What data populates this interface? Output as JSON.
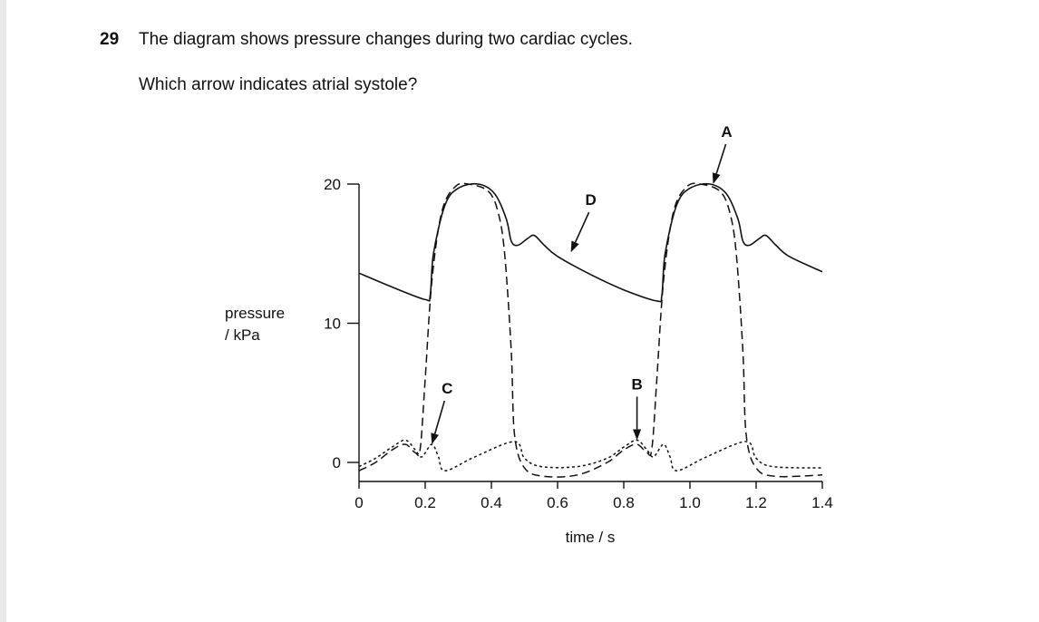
{
  "question": {
    "number": "29",
    "text": "The diagram shows pressure changes during two cardiac cycles.",
    "prompt": "Which arrow indicates atrial systole?"
  },
  "chart_data": {
    "type": "line",
    "xlabel": "time / s",
    "ylabel_line1": "pressure",
    "ylabel_line2": "/ kPa",
    "xlim": [
      0,
      1.4
    ],
    "ylim": [
      0,
      20
    ],
    "x_ticks": [
      "0",
      "0.2",
      "0.4",
      "0.6",
      "0.8",
      "1.0",
      "1.2",
      "1.4"
    ],
    "y_ticks": [
      "0",
      "10",
      "20"
    ],
    "grid": false,
    "series": [
      {
        "style": "solid",
        "points": [
          [
            0,
            13.6
          ],
          [
            0.1,
            12.6
          ],
          [
            0.2,
            11.7
          ],
          [
            0.215,
            12.0
          ],
          [
            0.225,
            15.0
          ],
          [
            0.26,
            18.5
          ],
          [
            0.3,
            19.7
          ],
          [
            0.36,
            20.0
          ],
          [
            0.41,
            19.3
          ],
          [
            0.445,
            17.5
          ],
          [
            0.46,
            15.9
          ],
          [
            0.48,
            15.6
          ],
          [
            0.51,
            16.1
          ],
          [
            0.53,
            16.3
          ],
          [
            0.56,
            15.6
          ],
          [
            0.6,
            14.8
          ],
          [
            0.7,
            13.5
          ],
          [
            0.8,
            12.4
          ],
          [
            0.9,
            11.6
          ],
          [
            0.915,
            12.0
          ],
          [
            0.925,
            15.0
          ],
          [
            0.96,
            18.5
          ],
          [
            1.0,
            19.7
          ],
          [
            1.06,
            20.0
          ],
          [
            1.11,
            19.3
          ],
          [
            1.145,
            17.5
          ],
          [
            1.16,
            15.9
          ],
          [
            1.18,
            15.6
          ],
          [
            1.21,
            16.1
          ],
          [
            1.23,
            16.3
          ],
          [
            1.26,
            15.6
          ],
          [
            1.3,
            14.8
          ],
          [
            1.4,
            13.7
          ]
        ]
      },
      {
        "style": "dashed",
        "points": [
          [
            0,
            -0.6
          ],
          [
            0.05,
            0
          ],
          [
            0.1,
            0.9
          ],
          [
            0.14,
            1.3
          ],
          [
            0.17,
            0.7
          ],
          [
            0.185,
            1.0
          ],
          [
            0.2,
            6.0
          ],
          [
            0.22,
            13.0
          ],
          [
            0.25,
            18.0
          ],
          [
            0.29,
            19.8
          ],
          [
            0.33,
            20.0
          ],
          [
            0.39,
            19.5
          ],
          [
            0.42,
            18.0
          ],
          [
            0.44,
            15.0
          ],
          [
            0.46,
            8.0
          ],
          [
            0.47,
            2.0
          ],
          [
            0.5,
            -0.4
          ],
          [
            0.56,
            -1.0
          ],
          [
            0.66,
            -0.9
          ],
          [
            0.75,
            0
          ],
          [
            0.8,
            0.9
          ],
          [
            0.84,
            1.3
          ],
          [
            0.87,
            0.7
          ],
          [
            0.885,
            1.0
          ],
          [
            0.9,
            6.0
          ],
          [
            0.92,
            13.0
          ],
          [
            0.95,
            18.0
          ],
          [
            0.99,
            19.8
          ],
          [
            1.03,
            20.0
          ],
          [
            1.09,
            19.5
          ],
          [
            1.12,
            18.0
          ],
          [
            1.14,
            15.0
          ],
          [
            1.16,
            8.0
          ],
          [
            1.17,
            2.0
          ],
          [
            1.2,
            -0.4
          ],
          [
            1.26,
            -1.0
          ],
          [
            1.4,
            -0.9
          ]
        ]
      },
      {
        "style": "dotted",
        "points": [
          [
            0,
            -0.3
          ],
          [
            0.05,
            0.3
          ],
          [
            0.1,
            1.1
          ],
          [
            0.14,
            1.6
          ],
          [
            0.17,
            0.9
          ],
          [
            0.19,
            0.4
          ],
          [
            0.22,
            1.3
          ],
          [
            0.24,
            0.4
          ],
          [
            0.26,
            -0.6
          ],
          [
            0.35,
            0.4
          ],
          [
            0.47,
            1.5
          ],
          [
            0.5,
            0.3
          ],
          [
            0.55,
            -0.3
          ],
          [
            0.66,
            -0.3
          ],
          [
            0.75,
            0.3
          ],
          [
            0.8,
            1.1
          ],
          [
            0.84,
            1.6
          ],
          [
            0.87,
            0.9
          ],
          [
            0.89,
            0.4
          ],
          [
            0.92,
            1.3
          ],
          [
            0.94,
            0.4
          ],
          [
            0.96,
            -0.6
          ],
          [
            1.05,
            0.4
          ],
          [
            1.17,
            1.5
          ],
          [
            1.2,
            0.3
          ],
          [
            1.25,
            -0.3
          ],
          [
            1.4,
            -0.4
          ]
        ]
      }
    ],
    "annotations": [
      {
        "label": "A",
        "x": 1.07,
        "y": 20.0
      },
      {
        "label": "B",
        "x": 0.84,
        "y": 1.6
      },
      {
        "label": "C",
        "x": 0.22,
        "y": 1.3
      },
      {
        "label": "D",
        "x": 0.64,
        "y": 15.1
      }
    ]
  }
}
